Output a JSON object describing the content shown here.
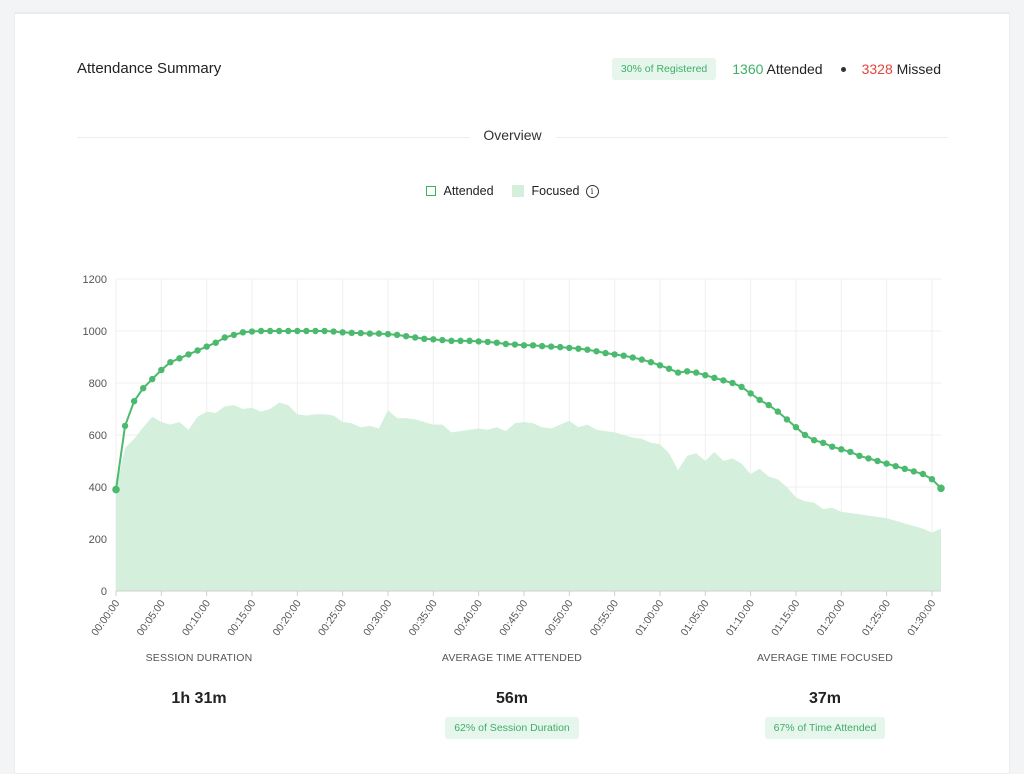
{
  "header": {
    "title": "Attendance Summary",
    "registered_badge": "30% of Registered",
    "attended_count": "1360",
    "attended_label": "Attended",
    "missed_count": "3328",
    "missed_label": "Missed"
  },
  "overview_label": "Overview",
  "legend": {
    "attended": "Attended",
    "focused": "Focused",
    "info_glyph": "i"
  },
  "colors": {
    "attended_line": "#4cba6e",
    "focused_area": "#d4f0dd",
    "accent_green": "#3fae6a",
    "missed_red": "#e0453a"
  },
  "chart_data": {
    "type": "line",
    "y_ticks": [
      0,
      200,
      400,
      600,
      800,
      1000,
      1200
    ],
    "ylim": [
      0,
      1200
    ],
    "x_tick_labels": [
      "00:00:00",
      "00:05:00",
      "00:10:00",
      "00:15:00",
      "00:20:00",
      "00:25:00",
      "00:30:00",
      "00:35:00",
      "00:40:00",
      "00:45:00",
      "00:50:00",
      "00:55:00",
      "01:00:00",
      "01:05:00",
      "01:10:00",
      "01:15:00",
      "01:20:00",
      "01:25:00",
      "01:30:00"
    ],
    "x_range_minutes": [
      0,
      91
    ],
    "grid": true,
    "legend_position": "top-center",
    "series": [
      {
        "name": "Attended",
        "style": "line-with-markers",
        "x_minutes": [
          0,
          1,
          2,
          3,
          4,
          5,
          6,
          7,
          8,
          9,
          10,
          11,
          12,
          13,
          14,
          15,
          16,
          17,
          18,
          19,
          20,
          21,
          22,
          23,
          24,
          25,
          26,
          27,
          28,
          29,
          30,
          31,
          32,
          33,
          34,
          35,
          36,
          37,
          38,
          39,
          40,
          41,
          42,
          43,
          44,
          45,
          46,
          47,
          48,
          49,
          50,
          51,
          52,
          53,
          54,
          55,
          56,
          57,
          58,
          59,
          60,
          61,
          62,
          63,
          64,
          65,
          66,
          67,
          68,
          69,
          70,
          71,
          72,
          73,
          74,
          75,
          76,
          77,
          78,
          79,
          80,
          81,
          82,
          83,
          84,
          85,
          86,
          87,
          88,
          89,
          90,
          91
        ],
        "values": [
          390,
          635,
          730,
          780,
          815,
          850,
          880,
          895,
          910,
          925,
          940,
          955,
          975,
          985,
          995,
          998,
          1000,
          1000,
          1000,
          1000,
          1000,
          1000,
          1000,
          1000,
          998,
          995,
          993,
          992,
          990,
          990,
          988,
          985,
          980,
          975,
          970,
          968,
          965,
          962,
          962,
          962,
          960,
          958,
          955,
          950,
          948,
          945,
          945,
          942,
          940,
          938,
          935,
          932,
          928,
          922,
          915,
          910,
          905,
          898,
          890,
          880,
          868,
          855,
          840,
          845,
          840,
          830,
          820,
          810,
          800,
          785,
          760,
          735,
          715,
          690,
          660,
          630,
          600,
          580,
          570,
          555,
          545,
          535,
          520,
          510,
          500,
          490,
          480,
          470,
          460,
          450,
          430,
          395
        ]
      },
      {
        "name": "Focused",
        "style": "area",
        "x_minutes": [
          0,
          1,
          2,
          3,
          4,
          5,
          6,
          7,
          8,
          9,
          10,
          11,
          12,
          13,
          14,
          15,
          16,
          17,
          18,
          19,
          20,
          21,
          22,
          23,
          24,
          25,
          26,
          27,
          28,
          29,
          30,
          31,
          32,
          33,
          34,
          35,
          36,
          37,
          38,
          39,
          40,
          41,
          42,
          43,
          44,
          45,
          46,
          47,
          48,
          49,
          50,
          51,
          52,
          53,
          54,
          55,
          56,
          57,
          58,
          59,
          60,
          61,
          62,
          63,
          64,
          65,
          66,
          67,
          68,
          69,
          70,
          71,
          72,
          73,
          74,
          75,
          76,
          77,
          78,
          79,
          80,
          81,
          82,
          83,
          84,
          85,
          86,
          87,
          88,
          89,
          90,
          91
        ],
        "values": [
          395,
          550,
          585,
          630,
          670,
          650,
          640,
          650,
          620,
          670,
          690,
          685,
          710,
          715,
          700,
          705,
          690,
          700,
          725,
          715,
          680,
          675,
          680,
          680,
          675,
          650,
          645,
          630,
          635,
          625,
          695,
          665,
          665,
          660,
          650,
          640,
          640,
          610,
          615,
          620,
          625,
          620,
          630,
          615,
          645,
          650,
          645,
          630,
          625,
          640,
          655,
          630,
          640,
          620,
          615,
          610,
          600,
          590,
          585,
          570,
          565,
          530,
          465,
          520,
          530,
          500,
          535,
          500,
          510,
          490,
          450,
          470,
          440,
          430,
          400,
          360,
          345,
          340,
          315,
          320,
          305,
          300,
          295,
          290,
          285,
          280,
          270,
          260,
          250,
          240,
          225,
          240
        ]
      }
    ]
  },
  "stats": {
    "session_duration_label": "SESSION DURATION",
    "session_duration_value": "1h 31m",
    "avg_time_attended_label": "AVERAGE TIME ATTENDED",
    "avg_time_attended_value": "56m",
    "avg_time_attended_badge": "62% of Session Duration",
    "avg_time_focused_label": "AVERAGE TIME FOCUSED",
    "avg_time_focused_value": "37m",
    "avg_time_focused_badge": "67% of Time Attended"
  }
}
